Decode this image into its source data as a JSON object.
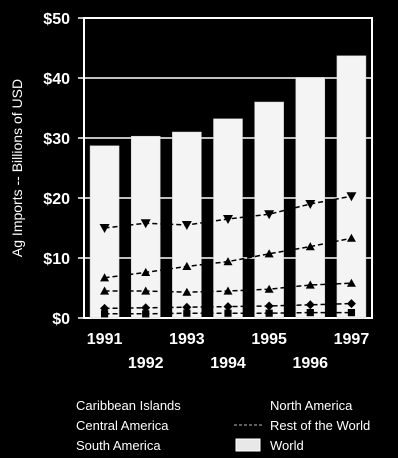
{
  "chart_data": {
    "type": "bar",
    "title": "",
    "ylabel": "Ag Imports -- Billions of USD",
    "xlabel": "",
    "ylim": [
      0,
      50
    ],
    "yticks": [
      "$0",
      "$10",
      "$20",
      "$30",
      "$40",
      "$50"
    ],
    "categories": [
      "1991",
      "1992",
      "1993",
      "1994",
      "1995",
      "1996",
      "1997"
    ],
    "bar_series": {
      "name": "World",
      "values": [
        28.7,
        30.3,
        31,
        33.2,
        36,
        40.1,
        43.7
      ]
    },
    "series": [
      {
        "name": "Rest of the World",
        "marker": "triangle-down",
        "values": [
          15,
          15.8,
          15.5,
          16.5,
          17.3,
          19,
          20.3
        ]
      },
      {
        "name": "North America",
        "marker": "triangle-up",
        "values": [
          6.7,
          7.6,
          8.6,
          9.4,
          10.7,
          11.9,
          13.3
        ]
      },
      {
        "name": "South America",
        "marker": "triangle-up",
        "values": [
          4.5,
          4.5,
          4.3,
          4.5,
          4.8,
          5.5,
          5.8
        ]
      },
      {
        "name": "Central America",
        "marker": "diamond",
        "values": [
          1.6,
          1.7,
          1.8,
          1.9,
          2,
          2.2,
          2.4
        ]
      },
      {
        "name": "Caribbean Islands",
        "marker": "square",
        "values": [
          0.7,
          0.7,
          0.8,
          0.8,
          0.8,
          0.9,
          0.9
        ]
      }
    ],
    "legend": [
      {
        "label": "Caribbean Islands"
      },
      {
        "label": "North America"
      },
      {
        "label": "Central America"
      },
      {
        "label": "Rest of the World"
      },
      {
        "label": "South America"
      },
      {
        "label": "World"
      }
    ],
    "legend_position": "bottom",
    "colors": {
      "background": "#000000",
      "bars": "#ffffff",
      "lines": "#000000",
      "text": "#ffffff"
    }
  }
}
